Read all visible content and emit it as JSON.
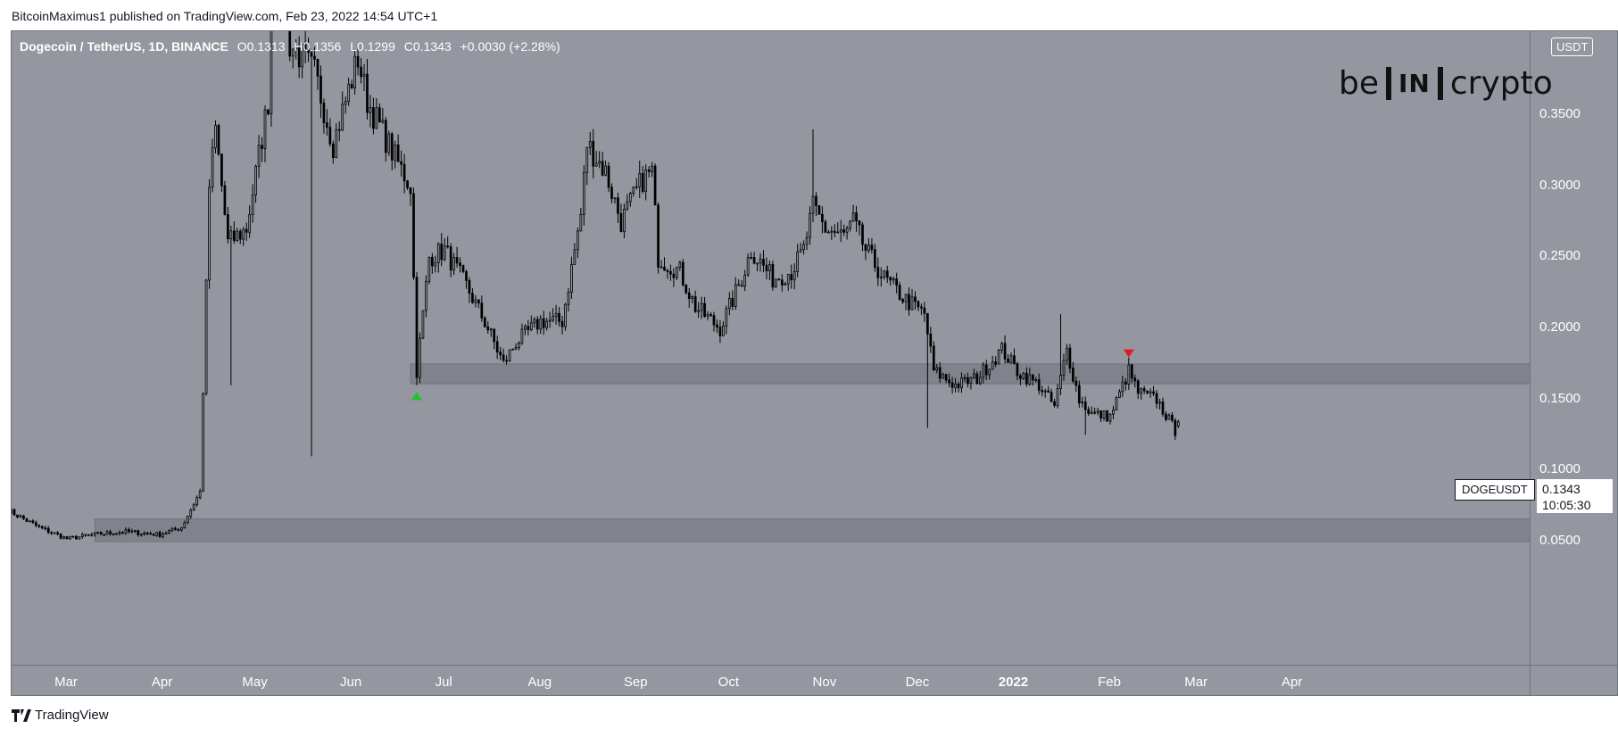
{
  "header": {
    "publisher_text": "BitcoinMaximus1 published on TradingView.com, Feb 23, 2022 14:54 UTC+1"
  },
  "legend": {
    "symbol": "Dogecoin / TetherUS, 1D, BINANCE",
    "open_label": "O",
    "open_value": "0.1313",
    "high_label": "H",
    "high_value": "0.1356",
    "low_label": "L",
    "low_value": "0.1299",
    "close_label": "C",
    "close_value": "0.1343",
    "change": "+0.0030 (+2.28%)"
  },
  "price_scale": {
    "currency": "USDT",
    "symbol_tag": "DOGEUSDT",
    "last_price": "0.1343",
    "countdown": "10:05:30"
  },
  "logo": {
    "left": "be",
    "mark": "IN",
    "right": "crypto"
  },
  "footer": {
    "brand": "TradingView"
  },
  "colors": {
    "background": "#94979f",
    "zone": "#7e818a",
    "candle": "#000000",
    "up_marker": "#22c522",
    "down_marker": "#e01b1b",
    "text": "#ffffff"
  },
  "chart_data": {
    "type": "candlestick",
    "title": "Dogecoin / TetherUS, 1D, BINANCE",
    "yticks": [
      "0.0500",
      "0.1000",
      "0.1500",
      "0.2000",
      "0.2500",
      "0.3000",
      "0.3500"
    ],
    "ylim": [
      0.0,
      0.39
    ],
    "x_ticks": [
      {
        "label": "Mar",
        "date": "2021-03-01"
      },
      {
        "label": "Apr",
        "date": "2021-04-01"
      },
      {
        "label": "May",
        "date": "2021-05-01"
      },
      {
        "label": "Jun",
        "date": "2021-06-01"
      },
      {
        "label": "Jul",
        "date": "2021-07-01"
      },
      {
        "label": "Aug",
        "date": "2021-08-01"
      },
      {
        "label": "Sep",
        "date": "2021-09-01"
      },
      {
        "label": "Oct",
        "date": "2021-10-01"
      },
      {
        "label": "Nov",
        "date": "2021-11-01"
      },
      {
        "label": "Dec",
        "date": "2021-12-01"
      },
      {
        "label": "2022",
        "date": "2022-01-01",
        "bold": true
      },
      {
        "label": "Feb",
        "date": "2022-02-01"
      },
      {
        "label": "Mar",
        "date": "2022-03-01"
      },
      {
        "label": "Apr",
        "date": "2022-04-01"
      }
    ],
    "anchors": [
      [
        "2021-02-10",
        0.072
      ],
      [
        "2021-02-20",
        0.06
      ],
      [
        "2021-03-01",
        0.052
      ],
      [
        "2021-03-10",
        0.055
      ],
      [
        "2021-03-20",
        0.057
      ],
      [
        "2021-03-31",
        0.055
      ],
      [
        "2021-04-07",
        0.06
      ],
      [
        "2021-04-13",
        0.085
      ],
      [
        "2021-04-16",
        0.3
      ],
      [
        "2021-04-18",
        0.34
      ],
      [
        "2021-04-22",
        0.26
      ],
      [
        "2021-04-28",
        0.27
      ],
      [
        "2021-05-05",
        0.36
      ],
      [
        "2021-05-08",
        0.58
      ],
      [
        "2021-05-12",
        0.4
      ],
      [
        "2021-05-20",
        0.38
      ],
      [
        "2021-05-26",
        0.33
      ],
      [
        "2021-06-03",
        0.39
      ],
      [
        "2021-06-06",
        0.36
      ],
      [
        "2021-06-15",
        0.32
      ],
      [
        "2021-06-20",
        0.3
      ],
      [
        "2021-06-22",
        0.17
      ],
      [
        "2021-06-26",
        0.25
      ],
      [
        "2021-07-01",
        0.255
      ],
      [
        "2021-07-08",
        0.23
      ],
      [
        "2021-07-15",
        0.2
      ],
      [
        "2021-07-20",
        0.175
      ],
      [
        "2021-07-24",
        0.19
      ],
      [
        "2021-08-01",
        0.205
      ],
      [
        "2021-08-08",
        0.205
      ],
      [
        "2021-08-14",
        0.28
      ],
      [
        "2021-08-16",
        0.33
      ],
      [
        "2021-08-22",
        0.31
      ],
      [
        "2021-08-27",
        0.275
      ],
      [
        "2021-09-03",
        0.305
      ],
      [
        "2021-09-06",
        0.31
      ],
      [
        "2021-09-08",
        0.25
      ],
      [
        "2021-09-15",
        0.24
      ],
      [
        "2021-09-20",
        0.215
      ],
      [
        "2021-09-28",
        0.2
      ],
      [
        "2021-10-05",
        0.235
      ],
      [
        "2021-10-08",
        0.255
      ],
      [
        "2021-10-15",
        0.235
      ],
      [
        "2021-10-21",
        0.24
      ],
      [
        "2021-10-25",
        0.255
      ],
      [
        "2021-10-28",
        0.285
      ],
      [
        "2021-11-01",
        0.27
      ],
      [
        "2021-11-07",
        0.265
      ],
      [
        "2021-11-10",
        0.275
      ],
      [
        "2021-11-14",
        0.255
      ],
      [
        "2021-11-20",
        0.235
      ],
      [
        "2021-11-27",
        0.22
      ],
      [
        "2021-12-03",
        0.21
      ],
      [
        "2021-12-06",
        0.17
      ],
      [
        "2021-12-13",
        0.16
      ],
      [
        "2021-12-20",
        0.165
      ],
      [
        "2021-12-28",
        0.185
      ],
      [
        "2022-01-02",
        0.17
      ],
      [
        "2022-01-09",
        0.16
      ],
      [
        "2022-01-14",
        0.145
      ],
      [
        "2022-01-18",
        0.185
      ],
      [
        "2022-01-22",
        0.15
      ],
      [
        "2022-01-26",
        0.14
      ],
      [
        "2022-02-01",
        0.138
      ],
      [
        "2022-02-07",
        0.17
      ],
      [
        "2022-02-10",
        0.155
      ],
      [
        "2022-02-16",
        0.15
      ],
      [
        "2022-02-22",
        0.128
      ],
      [
        "2022-02-23",
        0.1343
      ]
    ],
    "wicks": [
      {
        "date": "2021-04-23",
        "low": 0.16
      },
      {
        "date": "2021-05-19",
        "low": 0.11
      },
      {
        "date": "2021-06-22",
        "low": 0.16
      },
      {
        "date": "2021-10-28",
        "high": 0.34
      },
      {
        "date": "2021-12-04",
        "low": 0.13
      },
      {
        "date": "2022-01-16",
        "high": 0.21
      },
      {
        "date": "2022-01-24",
        "low": 0.125
      }
    ],
    "zones": [
      {
        "from": "2021-06-20",
        "low": 0.161,
        "high": 0.175
      },
      {
        "from": "2021-03-10",
        "low": 0.05,
        "high": 0.066
      }
    ],
    "markers": [
      {
        "date": "2021-06-22",
        "type": "up",
        "value": 0.152
      },
      {
        "date": "2022-02-07",
        "type": "down",
        "value": 0.182
      }
    ],
    "last": {
      "open": 0.1313,
      "high": 0.1356,
      "low": 0.1299,
      "close": 0.1343
    }
  }
}
